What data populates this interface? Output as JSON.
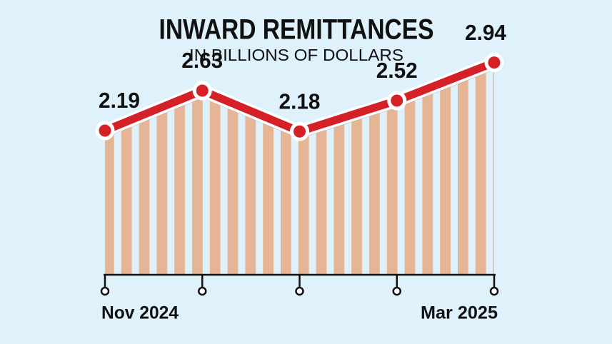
{
  "chart_data": {
    "type": "line",
    "title": "INWARD REMITTANCES",
    "subtitle": "IN BILLIONS OF DOLLARS",
    "categories": [
      "Nov 2024",
      null,
      null,
      null,
      "Mar 2025"
    ],
    "values": [
      2.19,
      2.63,
      2.18,
      2.52,
      2.94
    ],
    "color": "#d42027",
    "area_color": "#e5b595",
    "ylim": [
      0.6,
      3.0
    ]
  }
}
